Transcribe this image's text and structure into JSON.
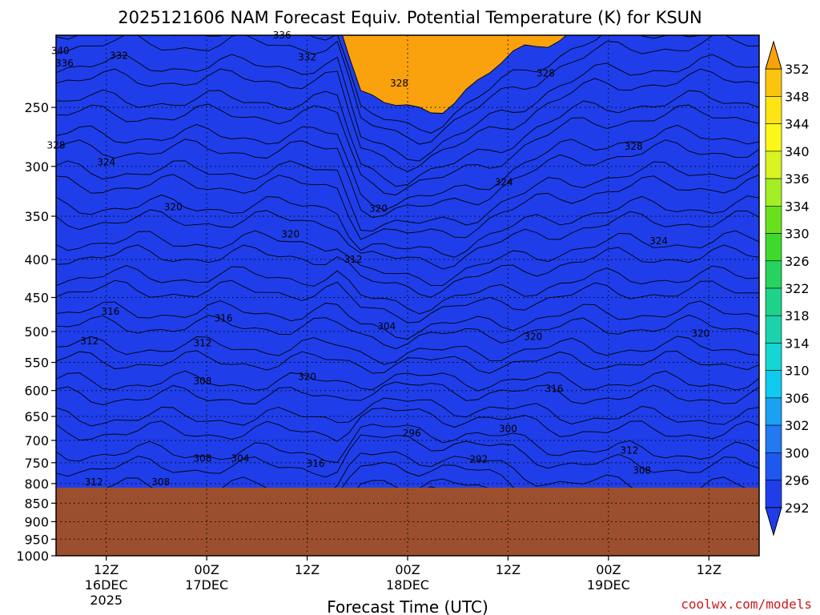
{
  "chart_data": {
    "type": "heatmap",
    "title": "2025121606 NAM Forecast Equiv. Potential Temperature (K) for KSUN",
    "xlabel": "Forecast Time (UTC)",
    "ylabel": "",
    "credit": "coolwx.com/models",
    "y_scale": "log-pressure",
    "ylim": [
      1000,
      200
    ],
    "y_ticks": [
      "250",
      "300",
      "350",
      "400",
      "450",
      "500",
      "550",
      "600",
      "650",
      "700",
      "750",
      "800",
      "850",
      "900",
      "950",
      "1000"
    ],
    "xlim": [
      "2025-12-16T06:00Z",
      "2025-12-19T18:00Z"
    ],
    "x_ticks": [
      {
        "time": "2025-12-16T12:00Z",
        "label1": "12Z",
        "label2": "16DEC",
        "label3": "2025"
      },
      {
        "time": "2025-12-17T00:00Z",
        "label1": "00Z",
        "label2": "17DEC",
        "label3": ""
      },
      {
        "time": "2025-12-17T12:00Z",
        "label1": "12Z",
        "label2": "",
        "label3": ""
      },
      {
        "time": "2025-12-18T00:00Z",
        "label1": "00Z",
        "label2": "18DEC",
        "label3": ""
      },
      {
        "time": "2025-12-18T12:00Z",
        "label1": "12Z",
        "label2": "",
        "label3": ""
      },
      {
        "time": "2025-12-19T00:00Z",
        "label1": "00Z",
        "label2": "19DEC",
        "label3": ""
      },
      {
        "time": "2025-12-19T12:00Z",
        "label1": "12Z",
        "label2": "",
        "label3": ""
      }
    ],
    "grid": true,
    "terrain_pressure": 810,
    "terrain_color": "#9c4f2e",
    "colorbar": {
      "levels": [
        "352",
        "348",
        "344",
        "340",
        "336",
        "334",
        "330",
        "326",
        "322",
        "318",
        "314",
        "310",
        "306",
        "302",
        "300",
        "296",
        "292"
      ],
      "colors": [
        "#f9a20d",
        "#fbc40e",
        "#fce512",
        "#fbf719",
        "#d9f323",
        "#a5ed24",
        "#6ae01d",
        "#3fd92e",
        "#27d35e",
        "#1ed389",
        "#1ad3ac",
        "#14d6d2",
        "#10c9ef",
        "#1ba1f2",
        "#2279f0",
        "#1f58ee",
        "#1f3eea"
      ],
      "placement": "right"
    },
    "contour_labels": [
      {
        "time": "2025-12-16T06:30Z",
        "p": 210,
        "text": "340"
      },
      {
        "time": "2025-12-16T07:00Z",
        "p": 218,
        "text": "336"
      },
      {
        "time": "2025-12-16T13:30Z",
        "p": 213,
        "text": "332"
      },
      {
        "time": "2025-12-17T09:00Z",
        "p": 200,
        "text": "336"
      },
      {
        "time": "2025-12-17T12:00Z",
        "p": 214,
        "text": "332"
      },
      {
        "time": "2025-12-17T23:00Z",
        "p": 232,
        "text": "328"
      },
      {
        "time": "2025-12-18T16:30Z",
        "p": 225,
        "text": "328"
      },
      {
        "time": "2025-12-19T03:00Z",
        "p": 282,
        "text": "328"
      },
      {
        "time": "2025-12-16T06:00Z",
        "p": 281,
        "text": "328"
      },
      {
        "time": "2025-12-16T12:00Z",
        "p": 296,
        "text": "324"
      },
      {
        "time": "2025-12-18T11:30Z",
        "p": 315,
        "text": "324"
      },
      {
        "time": "2025-12-16T20:00Z",
        "p": 340,
        "text": "320"
      },
      {
        "time": "2025-12-17T10:00Z",
        "p": 370,
        "text": "320"
      },
      {
        "time": "2025-12-17T20:30Z",
        "p": 342,
        "text": "320"
      },
      {
        "time": "2025-12-17T17:30Z",
        "p": 400,
        "text": "312"
      },
      {
        "time": "2025-12-19T06:00Z",
        "p": 378,
        "text": "324"
      },
      {
        "time": "2025-12-16T12:30Z",
        "p": 470,
        "text": "316"
      },
      {
        "time": "2025-12-17T02:00Z",
        "p": 480,
        "text": "316"
      },
      {
        "time": "2025-12-16T10:00Z",
        "p": 515,
        "text": "312"
      },
      {
        "time": "2025-12-16T23:30Z",
        "p": 518,
        "text": "312"
      },
      {
        "time": "2025-12-17T21:30Z",
        "p": 492,
        "text": "304"
      },
      {
        "time": "2025-12-18T15:00Z",
        "p": 508,
        "text": "320"
      },
      {
        "time": "2025-12-19T11:00Z",
        "p": 503,
        "text": "320"
      },
      {
        "time": "2025-12-16T23:30Z",
        "p": 583,
        "text": "308"
      },
      {
        "time": "2025-12-17T12:00Z",
        "p": 575,
        "text": "320"
      },
      {
        "time": "2025-12-18T17:30Z",
        "p": 597,
        "text": "316"
      },
      {
        "time": "2025-12-18T00:30Z",
        "p": 685,
        "text": "296"
      },
      {
        "time": "2025-12-18T12:00Z",
        "p": 675,
        "text": "300"
      },
      {
        "time": "2025-12-16T23:30Z",
        "p": 740,
        "text": "308"
      },
      {
        "time": "2025-12-17T04:00Z",
        "p": 740,
        "text": "304"
      },
      {
        "time": "2025-12-17T13:00Z",
        "p": 752,
        "text": "316"
      },
      {
        "time": "2025-12-18T08:30Z",
        "p": 742,
        "text": "292"
      },
      {
        "time": "2025-12-19T02:30Z",
        "p": 722,
        "text": "312"
      },
      {
        "time": "2025-12-19T04:00Z",
        "p": 768,
        "text": "308"
      },
      {
        "time": "2025-12-16T10:30Z",
        "p": 796,
        "text": "312"
      },
      {
        "time": "2025-12-16T18:30Z",
        "p": 796,
        "text": "308"
      }
    ]
  }
}
